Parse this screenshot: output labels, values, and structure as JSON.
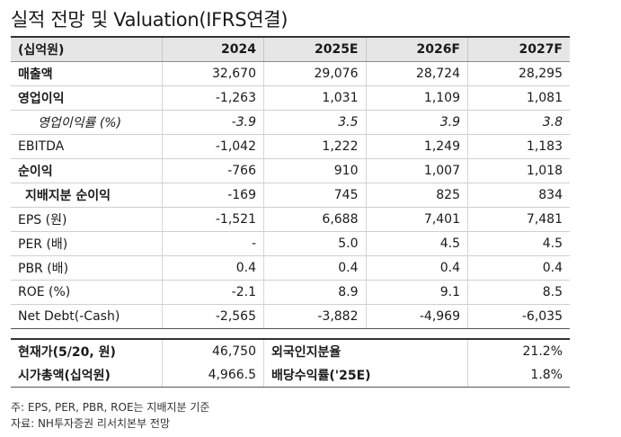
{
  "title": "실적 전망 및 Valuation(IFRS연결)",
  "header": [
    "(십억원)",
    "2024",
    "2025E",
    "2026F",
    "2027F"
  ],
  "rows": [
    {
      "label": "매출액",
      "values": [
        "32,670",
        "29,076",
        "28,724",
        "28,295"
      ]
    },
    {
      "label": "영업이익",
      "values": [
        "-1,263",
        "1,031",
        "1,109",
        "1,081"
      ]
    },
    {
      "label": "영업이익률 (%)",
      "values": [
        "-3.9",
        "3.5",
        "3.9",
        "3.8"
      ]
    },
    {
      "label": "EBITDA",
      "values": [
        "-1,042",
        "1,222",
        "1,249",
        "1,183"
      ]
    },
    {
      "label": "순이익",
      "values": [
        "-766",
        "910",
        "1,007",
        "1,018"
      ]
    },
    {
      "label": "지배지분 순이익",
      "values": [
        "-169",
        "745",
        "825",
        "834"
      ]
    },
    {
      "label": "EPS (원)",
      "values": [
        "-1,521",
        "6,688",
        "7,401",
        "7,481"
      ]
    },
    {
      "label": "PER (배)",
      "values": [
        "-",
        "5.0",
        "4.5",
        "4.5"
      ]
    },
    {
      "label": "PBR (배)",
      "values": [
        "0.4",
        "0.4",
        "0.4",
        "0.4"
      ]
    },
    {
      "label": "ROE (%)",
      "values": [
        "-2.1",
        "8.9",
        "9.1",
        "8.5"
      ]
    },
    {
      "label": "Net Debt(-Cash)",
      "values": [
        "-2,565",
        "-3,882",
        "-4,969",
        "-6,035"
      ]
    }
  ],
  "summary": [
    {
      "label": "현재가(5/20, 원)",
      "value": "46,750",
      "label2": "외국인지분율",
      "value2": "21.2%"
    },
    {
      "label": "시가총액(십억원)",
      "value": "4,966.5",
      "label2": "배당수익률('25E)",
      "value2": "1.8%"
    }
  ],
  "notes": [
    "주: EPS, PER, PBR, ROE는 지배지분 기준",
    "자료: NH투자증권 리서치본부 전망"
  ]
}
